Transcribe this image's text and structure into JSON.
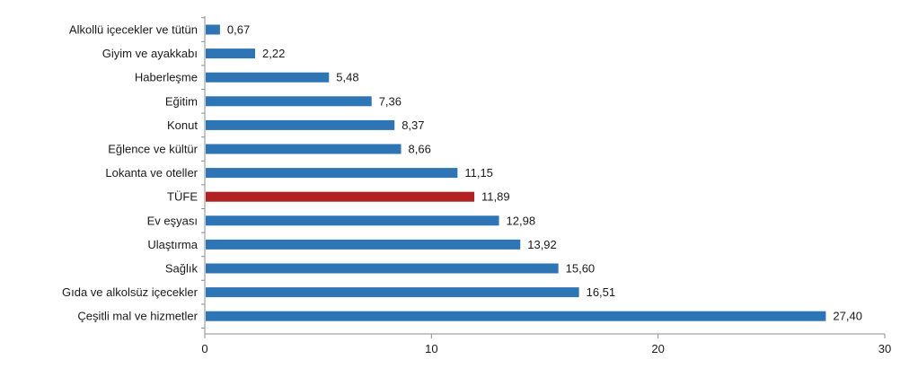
{
  "chart_data": {
    "type": "bar",
    "orientation": "horizontal",
    "categories": [
      "Alkollü içecekler ve tütün",
      "Giyim ve ayakkabı",
      "Haberleşme",
      "Eğitim",
      "Konut",
      "Eğlence ve kültür",
      "Lokanta ve oteller",
      "TÜFE",
      "Ev eşyası",
      "Ulaştırma",
      "Sağlık",
      "Gıda ve alkolsüz içecekler",
      "Çeşitli mal ve hizmetler"
    ],
    "values": [
      0.67,
      2.22,
      5.48,
      7.36,
      8.37,
      8.66,
      11.15,
      11.89,
      12.98,
      13.92,
      15.6,
      16.51,
      27.4
    ],
    "value_labels": [
      "0,67",
      "2,22",
      "5,48",
      "7,36",
      "8,37",
      "8,66",
      "11,15",
      "11,89",
      "12,98",
      "13,92",
      "15,60",
      "16,51",
      "27,40"
    ],
    "highlight_category": "TÜFE",
    "xlim": [
      0,
      30
    ],
    "xticks": [
      0,
      10,
      20,
      30
    ],
    "xtick_labels": [
      "0",
      "10",
      "20",
      "30"
    ],
    "title": "",
    "xlabel": "",
    "ylabel": "",
    "grid": false,
    "legend": "none",
    "colors": {
      "bar": "#2E75B6",
      "highlight": "#B22222",
      "axis": "#8c8c8c",
      "text": "#1a1a1a"
    }
  }
}
